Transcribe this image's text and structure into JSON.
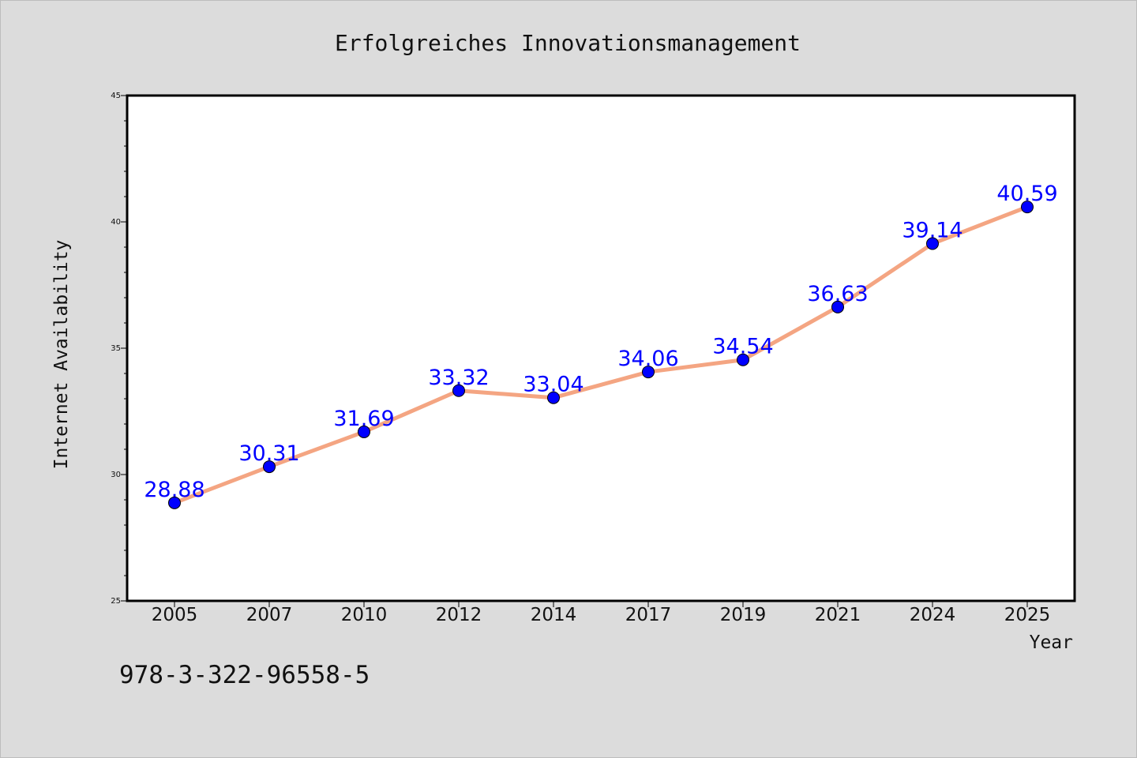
{
  "chart_data": {
    "type": "line",
    "title": "Erfolgreiches Innovationsmanagement",
    "xlabel": "Year",
    "ylabel": "Internet Availability",
    "categories": [
      "2005",
      "2007",
      "2010",
      "2012",
      "2014",
      "2017",
      "2019",
      "2021",
      "2024",
      "2025"
    ],
    "series": [
      {
        "values": [
          28.88,
          30.31,
          31.69,
          33.32,
          33.04,
          34.06,
          34.54,
          36.63,
          39.14,
          40.59
        ],
        "labels": [
          "28.88",
          "30.31",
          "31.69",
          "33.32",
          "33.04",
          "34.06",
          "34.54",
          "36.63",
          "39.14",
          "40.59"
        ]
      }
    ],
    "ylim": [
      25,
      45
    ],
    "yticks": [
      "25",
      "30",
      "35",
      "40",
      "45"
    ],
    "grid": false,
    "line_color": "#f4a582",
    "marker_color": "#0000ff",
    "label_color": "#0000ff"
  },
  "footnote": "978-3-322-96558-5"
}
